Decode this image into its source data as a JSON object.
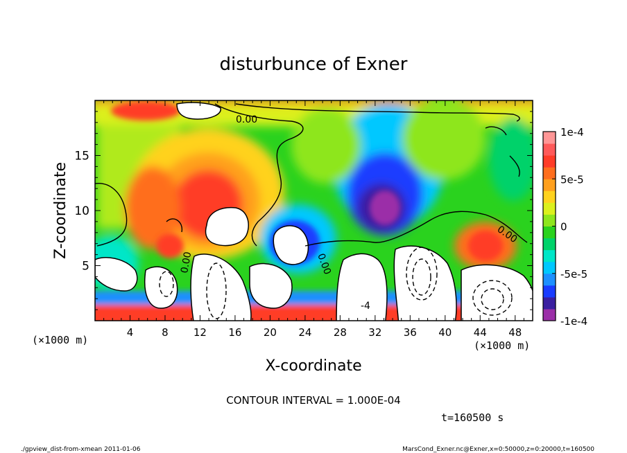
{
  "chart_data": {
    "type": "heatmap",
    "title": "disturbunce of Exner",
    "xlabel": "X-coordinate",
    "ylabel": "Z-coordinate",
    "x_unit": "(×1000 m)",
    "z_unit": "(×1000 m)",
    "xlim": [
      0,
      50
    ],
    "ylim": [
      0,
      20
    ],
    "x_ticks": [
      "4",
      "8",
      "12",
      "16",
      "20",
      "24",
      "28",
      "32",
      "36",
      "40",
      "44",
      "48"
    ],
    "y_ticks": [
      "5",
      "10",
      "15"
    ],
    "colorbar": {
      "range": [
        -0.0001,
        0.0001
      ],
      "tick_labels": [
        "1e-4",
        "5e-5",
        "0",
        "-5e-5",
        "-1e-4"
      ],
      "colors": [
        "#9b2fa8",
        "#3a1fa0",
        "#1a3cff",
        "#1e90ff",
        "#00c8ff",
        "#00e6c8",
        "#00d26a",
        "#2ad21e",
        "#8ee61e",
        "#dcf01e",
        "#ffd21e",
        "#ffa01e",
        "#ff6e1e",
        "#ff3c28",
        "#ff5a5a",
        "#ff9696"
      ]
    },
    "contour_labels": [
      "0.00",
      "0.00",
      "0.00",
      "0.00",
      "-4"
    ],
    "contour_interval_text": "CONTOUR INTERVAL = 1.000E-04",
    "time_text": "t=160500 s"
  },
  "footer": {
    "left": "./gpview_dist-from-xmean 2011-01-06",
    "right": "MarsCond_Exner.nc@Exner,x=0:50000,z=0:20000,t=160500"
  }
}
